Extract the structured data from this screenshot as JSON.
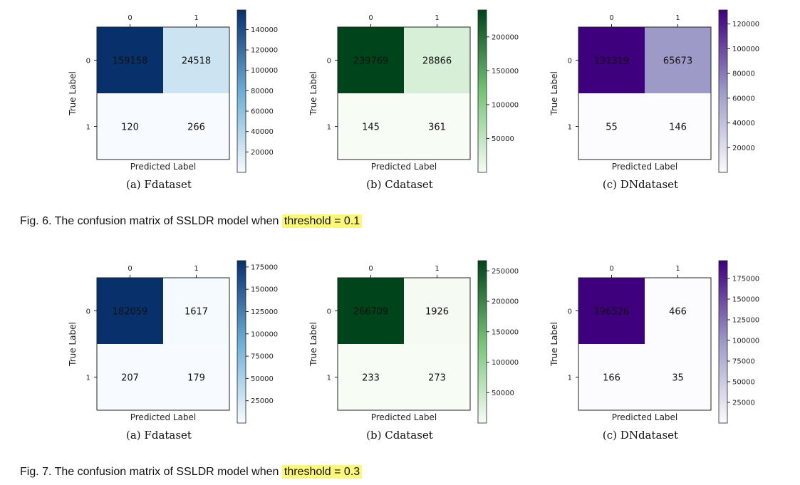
{
  "figures": [
    {
      "caption_prefix": "Fig. 6.  The confusion matrix of SSLDR model when ",
      "caption_highlight": "threshold = 0.1",
      "panels": [
        {
          "label": "(a)  Fdataset",
          "cmap": "blues",
          "matrix": [
            [
              159158,
              24518
            ],
            [
              120,
              266
            ]
          ],
          "vmax": 159158,
          "cbar_ticks": [
            "20000",
            "40000",
            "60000",
            "80000",
            "100000",
            "120000",
            "140000"
          ]
        },
        {
          "label": "(b)  Cdataset",
          "cmap": "greens",
          "matrix": [
            [
              239769,
              28866
            ],
            [
              145,
              361
            ]
          ],
          "vmax": 239769,
          "cbar_ticks": [
            "50000",
            "100000",
            "150000",
            "200000"
          ]
        },
        {
          "label": "(c)  DNdataset",
          "cmap": "purples",
          "matrix": [
            [
              131319,
              65673
            ],
            [
              55,
              146
            ]
          ],
          "vmax": 131319,
          "cbar_ticks": [
            "20000",
            "40000",
            "60000",
            "80000",
            "100000",
            "120000"
          ]
        }
      ]
    },
    {
      "caption_prefix": "Fig. 7.  The confusion matrix of SSLDR model when ",
      "caption_highlight": "threshold = 0.3",
      "panels": [
        {
          "label": "(a)  Fdataset",
          "cmap": "blues",
          "matrix": [
            [
              182059,
              1617
            ],
            [
              207,
              179
            ]
          ],
          "vmax": 182059,
          "cbar_ticks": [
            "25000",
            "50000",
            "75000",
            "100000",
            "125000",
            "150000",
            "175000"
          ]
        },
        {
          "label": "(b)  Cdataset",
          "cmap": "greens",
          "matrix": [
            [
              266709,
              1926
            ],
            [
              233,
              273
            ]
          ],
          "vmax": 266709,
          "cbar_ticks": [
            "50000",
            "100000",
            "150000",
            "200000",
            "250000"
          ]
        },
        {
          "label": "(c)  DNdataset",
          "cmap": "purples",
          "matrix": [
            [
              196526,
              466
            ],
            [
              166,
              35
            ]
          ],
          "vmax": 196526,
          "cbar_ticks": [
            "25000",
            "50000",
            "75000",
            "100000",
            "125000",
            "150000",
            "175000"
          ]
        }
      ]
    }
  ],
  "axis": {
    "xlabel": "Predicted Label",
    "ylabel": "True Label",
    "class_ticks": [
      "0",
      "1"
    ]
  },
  "colormaps": {
    "blues": {
      "low": "#f7fbff",
      "mid": "#6baed6",
      "high": "#08306b"
    },
    "greens": {
      "low": "#f7fcf5",
      "mid": "#74c476",
      "high": "#00441b"
    },
    "purples": {
      "low": "#fcfbfd",
      "mid": "#9e9ac8",
      "high": "#3f007d"
    }
  }
}
